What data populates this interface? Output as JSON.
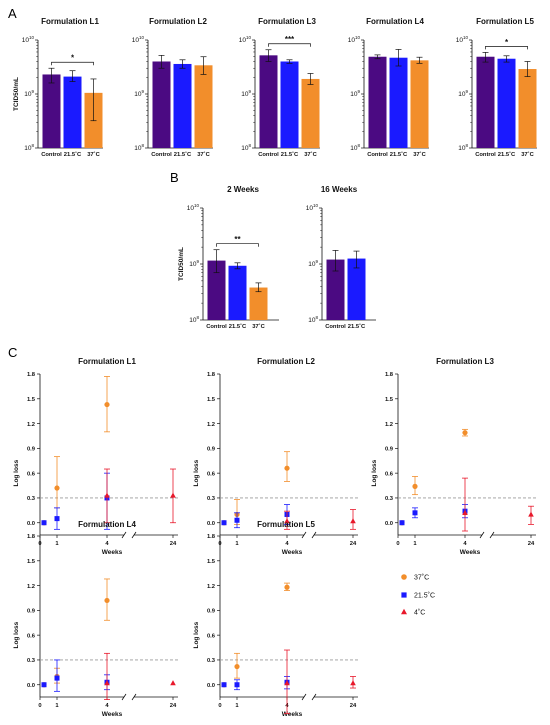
{
  "panel_labels": {
    "a": "A",
    "b": "B",
    "c": "C"
  },
  "legend": {
    "items": [
      {
        "label": "37˚C",
        "color": "#f28e2b",
        "marker": "circle"
      },
      {
        "label": "21.5˚C",
        "color": "#1a1aff",
        "marker": "square"
      },
      {
        "label": "4˚C",
        "color": "#e8182b",
        "marker": "triangle"
      }
    ]
  },
  "colors": {
    "purple": "#4b0a82",
    "blue": "#1a1aff",
    "orange": "#f28e2b",
    "red": "#e8182b",
    "threshold": "#9a9a9a"
  },
  "chart_data": [
    {
      "panel": "A",
      "type": "bar",
      "title": "Formulation L1",
      "ylabel": "TCID50/mL",
      "yscale": "log",
      "ylim": [
        100000000,
        10000000000
      ],
      "ytick_labels": [
        "10^8",
        "10^9",
        "10^10"
      ],
      "categories": [
        "Control",
        "21.5˚C",
        "37˚C"
      ],
      "values": [
        2300000000,
        2100000000,
        1050000000
      ],
      "errors": [
        [
          1600000000,
          3000000000
        ],
        [
          1700000000,
          2700000000
        ],
        [
          320000000,
          1900000000
        ]
      ],
      "significance": [
        {
          "from": 0,
          "to": 2,
          "label": "*"
        }
      ]
    },
    {
      "panel": "A",
      "type": "bar",
      "title": "Formulation L2",
      "ylabel": "",
      "yscale": "log",
      "ylim": [
        100000000,
        10000000000
      ],
      "ytick_labels": [
        "10^8",
        "10^9",
        "10^10"
      ],
      "categories": [
        "Control",
        "21.5˚C",
        "37˚C"
      ],
      "values": [
        4000000000,
        3600000000,
        3400000000
      ],
      "errors": [
        [
          3000000000,
          5200000000
        ],
        [
          3000000000,
          4300000000
        ],
        [
          2300000000,
          4900000000
        ]
      ],
      "significance": []
    },
    {
      "panel": "A",
      "type": "bar",
      "title": "Formulation L3",
      "ylabel": "",
      "yscale": "log",
      "ylim": [
        100000000,
        10000000000
      ],
      "ytick_labels": [
        "10^8",
        "10^9",
        "10^10"
      ],
      "categories": [
        "Control",
        "21.5˚C",
        "37˚C"
      ],
      "values": [
        5200000000,
        4000000000,
        1900000000
      ],
      "errors": [
        [
          4000000000,
          6600000000
        ],
        [
          3700000000,
          4300000000
        ],
        [
          1500000000,
          2400000000
        ]
      ],
      "significance": [
        {
          "from": 0,
          "to": 2,
          "label": "***"
        }
      ]
    },
    {
      "panel": "A",
      "type": "bar",
      "title": "Formulation L4",
      "ylabel": "",
      "yscale": "log",
      "ylim": [
        100000000,
        10000000000
      ],
      "ytick_labels": [
        "10^8",
        "10^9",
        "10^10"
      ],
      "categories": [
        "Control",
        "21.5˚C",
        "37˚C"
      ],
      "values": [
        4900000000,
        4700000000,
        4200000000
      ],
      "errors": [
        [
          4500000000,
          5300000000
        ],
        [
          3300000000,
          6700000000
        ],
        [
          3700000000,
          4800000000
        ]
      ],
      "significance": []
    },
    {
      "panel": "A",
      "type": "bar",
      "title": "Formulation L5",
      "ylabel": "",
      "yscale": "log",
      "ylim": [
        100000000,
        10000000000
      ],
      "ytick_labels": [
        "10^8",
        "10^9",
        "10^10"
      ],
      "categories": [
        "Control",
        "21.5˚C",
        "37˚C"
      ],
      "values": [
        4900000000,
        4500000000,
        2900000000
      ],
      "errors": [
        [
          3900000000,
          5900000000
        ],
        [
          3900000000,
          5100000000
        ],
        [
          2100000000,
          4000000000
        ]
      ],
      "significance": [
        {
          "from": 0,
          "to": 2,
          "label": "*"
        }
      ]
    },
    {
      "panel": "B",
      "type": "bar",
      "title": "2 Weeks",
      "ylabel": "TCID50/mL",
      "yscale": "log",
      "ylim": [
        100000000,
        10000000000
      ],
      "ytick_labels": [
        "10^8",
        "10^9",
        "10^10"
      ],
      "categories": [
        "Control",
        "21.5˚C",
        "37˚C"
      ],
      "values": [
        1150000000,
        930000000,
        380000000
      ],
      "errors": [
        [
          700000000,
          1800000000
        ],
        [
          820000000,
          1050000000
        ],
        [
          320000000,
          460000000
        ]
      ],
      "significance": [
        {
          "from": 0,
          "to": 2,
          "label": "**"
        }
      ]
    },
    {
      "panel": "B",
      "type": "bar",
      "title": "16 Weeks",
      "ylabel": "",
      "yscale": "log",
      "ylim": [
        100000000,
        10000000000
      ],
      "ytick_labels": [
        "10^8",
        "10^9",
        "10^10"
      ],
      "categories": [
        "Control",
        "21.5˚C"
      ],
      "values": [
        1200000000,
        1250000000
      ],
      "errors": [
        [
          750000000,
          1750000000
        ],
        [
          850000000,
          1700000000
        ]
      ],
      "significance": []
    },
    {
      "panel": "C",
      "type": "scatter",
      "title": "Formulation L1",
      "xlabel": "Weeks",
      "ylabel": "Log loss",
      "ylim": [
        -0.1,
        1.8
      ],
      "yticks": [
        0.0,
        0.3,
        0.6,
        0.9,
        1.2,
        1.5,
        1.8
      ],
      "xticks": [
        0,
        1,
        4,
        24
      ],
      "threshold": 0.3,
      "series": [
        {
          "name": "37˚C",
          "points": [
            {
              "x": 0,
              "y": 0.0,
              "lo": 0.0,
              "hi": 0.0
            },
            {
              "x": 1,
              "y": 0.42,
              "lo": 0.18,
              "hi": 0.8
            },
            {
              "x": 4,
              "y": 1.43,
              "lo": 1.1,
              "hi": 1.77
            }
          ]
        },
        {
          "name": "21.5˚C",
          "points": [
            {
              "x": 0,
              "y": 0.0,
              "lo": 0.0,
              "hi": 0.0
            },
            {
              "x": 1,
              "y": 0.05,
              "lo": -0.08,
              "hi": 0.18
            },
            {
              "x": 4,
              "y": 0.3,
              "lo": -0.08,
              "hi": 0.6
            }
          ]
        },
        {
          "name": "4˚C",
          "points": [
            {
              "x": 4,
              "y": 0.33,
              "lo": 0.0,
              "hi": 0.65
            },
            {
              "x": 24,
              "y": 0.33,
              "lo": 0.0,
              "hi": 0.65
            }
          ]
        }
      ]
    },
    {
      "panel": "C",
      "type": "scatter",
      "title": "Formulation L2",
      "xlabel": "Weeks",
      "ylabel": "Log loss",
      "ylim": [
        -0.1,
        1.8
      ],
      "yticks": [
        0.0,
        0.3,
        0.6,
        0.9,
        1.2,
        1.5,
        1.8
      ],
      "xticks": [
        0,
        1,
        4,
        24
      ],
      "threshold": 0.3,
      "series": [
        {
          "name": "37˚C",
          "points": [
            {
              "x": 0,
              "y": 0.0,
              "lo": 0.0,
              "hi": 0.0
            },
            {
              "x": 1,
              "y": 0.1,
              "lo": -0.02,
              "hi": 0.28
            },
            {
              "x": 4,
              "y": 0.66,
              "lo": 0.5,
              "hi": 0.86
            }
          ]
        },
        {
          "name": "21.5˚C",
          "points": [
            {
              "x": 0,
              "y": 0.0,
              "lo": 0.0,
              "hi": 0.0
            },
            {
              "x": 1,
              "y": 0.03,
              "lo": -0.06,
              "hi": 0.12
            },
            {
              "x": 4,
              "y": 0.1,
              "lo": -0.02,
              "hi": 0.22
            }
          ]
        },
        {
          "name": "4˚C",
          "points": [
            {
              "x": 4,
              "y": 0.02,
              "lo": -0.08,
              "hi": 0.14
            },
            {
              "x": 24,
              "y": 0.02,
              "lo": -0.08,
              "hi": 0.16
            }
          ]
        }
      ]
    },
    {
      "panel": "C",
      "type": "scatter",
      "title": "Formulation L3",
      "xlabel": "Weeks",
      "ylabel": "Log loss",
      "ylim": [
        -0.1,
        1.8
      ],
      "yticks": [
        0.0,
        0.3,
        0.6,
        0.9,
        1.2,
        1.5,
        1.8
      ],
      "xticks": [
        0,
        1,
        4,
        24
      ],
      "threshold": 0.3,
      "series": [
        {
          "name": "37˚C",
          "points": [
            {
              "x": 0,
              "y": 0.0,
              "lo": 0.0,
              "hi": 0.0
            },
            {
              "x": 1,
              "y": 0.44,
              "lo": 0.34,
              "hi": 0.56
            },
            {
              "x": 4,
              "y": 1.09,
              "lo": 1.05,
              "hi": 1.13
            }
          ]
        },
        {
          "name": "21.5˚C",
          "points": [
            {
              "x": 0,
              "y": 0.0,
              "lo": 0.0,
              "hi": 0.0
            },
            {
              "x": 1,
              "y": 0.12,
              "lo": 0.06,
              "hi": 0.18
            },
            {
              "x": 4,
              "y": 0.14,
              "lo": 0.06,
              "hi": 0.22
            }
          ]
        },
        {
          "name": "4˚C",
          "points": [
            {
              "x": 4,
              "y": 0.12,
              "lo": -0.1,
              "hi": 0.54
            },
            {
              "x": 24,
              "y": 0.1,
              "lo": -0.02,
              "hi": 0.2
            }
          ]
        }
      ]
    },
    {
      "panel": "C",
      "type": "scatter",
      "title": "Formulation L4",
      "xlabel": "Weeks",
      "ylabel": "Log loss",
      "ylim": [
        -0.1,
        1.8
      ],
      "yticks": [
        0.0,
        0.3,
        0.6,
        0.9,
        1.2,
        1.5,
        1.8
      ],
      "xticks": [
        0,
        1,
        4,
        24
      ],
      "threshold": 0.3,
      "series": [
        {
          "name": "37˚C",
          "points": [
            {
              "x": 0,
              "y": 0.0,
              "lo": 0.0,
              "hi": 0.0
            },
            {
              "x": 1,
              "y": 0.1,
              "lo": 0.02,
              "hi": 0.2
            },
            {
              "x": 4,
              "y": 1.02,
              "lo": 0.78,
              "hi": 1.28
            }
          ]
        },
        {
          "name": "21.5˚C",
          "points": [
            {
              "x": 0,
              "y": 0.0,
              "lo": 0.0,
              "hi": 0.0
            },
            {
              "x": 1,
              "y": 0.08,
              "lo": -0.08,
              "hi": 0.3
            },
            {
              "x": 4,
              "y": 0.03,
              "lo": -0.06,
              "hi": 0.12
            }
          ]
        },
        {
          "name": "4˚C",
          "points": [
            {
              "x": 4,
              "y": 0.02,
              "lo": -0.18,
              "hi": 0.38
            },
            {
              "x": 24,
              "y": 0.02,
              "lo": 0.02,
              "hi": 0.02
            }
          ]
        }
      ]
    },
    {
      "panel": "C",
      "type": "scatter",
      "title": "Formulation L5",
      "xlabel": "Weeks",
      "ylabel": "Log loss",
      "ylim": [
        -0.1,
        1.8
      ],
      "yticks": [
        0.0,
        0.3,
        0.6,
        0.9,
        1.2,
        1.5,
        1.8
      ],
      "xticks": [
        0,
        1,
        4,
        24
      ],
      "threshold": 0.3,
      "series": [
        {
          "name": "37˚C",
          "points": [
            {
              "x": 0,
              "y": 0.0,
              "lo": 0.0,
              "hi": 0.0
            },
            {
              "x": 1,
              "y": 0.22,
              "lo": 0.08,
              "hi": 0.38
            },
            {
              "x": 4,
              "y": 1.18,
              "lo": 1.14,
              "hi": 1.23
            }
          ]
        },
        {
          "name": "21.5˚C",
          "points": [
            {
              "x": 0,
              "y": 0.0,
              "lo": 0.0,
              "hi": 0.0
            },
            {
              "x": 1,
              "y": 0.0,
              "lo": -0.06,
              "hi": 0.06
            },
            {
              "x": 4,
              "y": 0.03,
              "lo": -0.05,
              "hi": 0.1
            }
          ]
        },
        {
          "name": "4˚C",
          "points": [
            {
              "x": 4,
              "y": 0.02,
              "lo": -0.35,
              "hi": 0.42
            },
            {
              "x": 24,
              "y": 0.02,
              "lo": -0.04,
              "hi": 0.1
            }
          ]
        }
      ]
    }
  ]
}
